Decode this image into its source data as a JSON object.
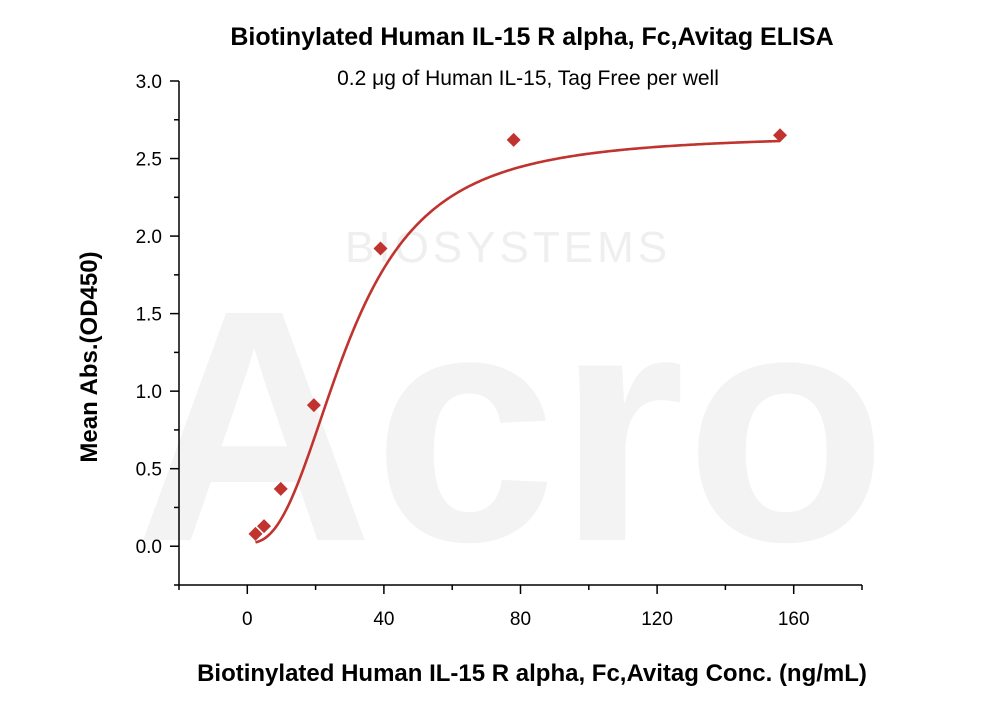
{
  "chart_data": {
    "type": "scatter",
    "title": "Biotinylated Human IL-15 R alpha, Fc,Avitag ELISA",
    "subtitle": "0.2 μg of Human IL-15, Tag Free per well",
    "xlabel": "Biotinylated Human IL-15 R alpha, Fc,Avitag Conc. (ng/mL)",
    "ylabel": "Mean Abs.(OD450)",
    "xlim": [
      -20,
      180
    ],
    "ylim": [
      -0.25,
      3.0
    ],
    "xticks": [
      0,
      40,
      80,
      120,
      160
    ],
    "yticks": [
      0.0,
      0.5,
      1.0,
      1.5,
      2.0,
      2.5,
      3.0
    ],
    "xtick_labels": [
      "0",
      "40",
      "80",
      "120",
      "160"
    ],
    "ytick_labels": [
      "0.0",
      "0.5",
      "1.0",
      "1.5",
      "2.0",
      "2.5",
      "3.0"
    ],
    "grid": false,
    "series": [
      {
        "marker": "diamond",
        "color": "#c0332f",
        "points": [
          {
            "x": 2.4,
            "y": 0.08
          },
          {
            "x": 4.9,
            "y": 0.13
          },
          {
            "x": 9.8,
            "y": 0.37
          },
          {
            "x": 19.5,
            "y": 0.91
          },
          {
            "x": 39,
            "y": 1.92
          },
          {
            "x": 78,
            "y": 2.62
          },
          {
            "x": 156,
            "y": 2.65
          }
        ]
      }
    ],
    "fit_curve": {
      "type": "4PL",
      "color": "#c0332f",
      "bottom": 0.02,
      "top": 2.655,
      "ec50": 30.0,
      "hill": 2.5
    }
  },
  "watermark": {
    "logo_text": "Acro",
    "brand_text": "BIOSYSTEMS"
  }
}
